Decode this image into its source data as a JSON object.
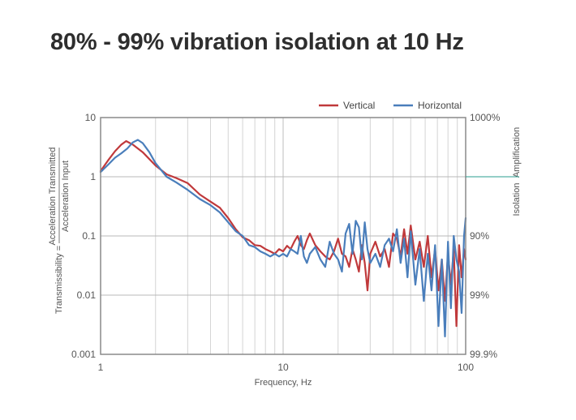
{
  "page": {
    "title": "80% - 99% vibration isolation at 10 Hz"
  },
  "chart_data": {
    "type": "line",
    "title": "80% - 99% vibration isolation at 10 Hz",
    "xlabel": "Frequency, Hz",
    "ylabel_left": "Transmissibility = Acceleration Transmitted / Acceleration Input",
    "ylabel_left_prefix": "Transmissibility =",
    "ylabel_left_numerator": "Acceleration Transmitted",
    "ylabel_left_denominator": "Acceleration Input",
    "ylabel_right_upper": "Amplification",
    "ylabel_right_lower": "Isolation",
    "x_scale": "log",
    "y_scale": "log",
    "xlim": [
      1,
      100
    ],
    "ylim": [
      0.001,
      10
    ],
    "x_ticks": [
      {
        "value": 1,
        "label": "1"
      },
      {
        "value": 10,
        "label": "10"
      },
      {
        "value": 100,
        "label": "100"
      }
    ],
    "y_ticks_left": [
      {
        "value": 10,
        "label": "10"
      },
      {
        "value": 1,
        "label": "1"
      },
      {
        "value": 0.1,
        "label": "0.1"
      },
      {
        "value": 0.01,
        "label": "0.01"
      },
      {
        "value": 0.001,
        "label": "0.001"
      }
    ],
    "y_ticks_right": [
      {
        "value": 10,
        "label": "1000%"
      },
      {
        "value": 0.1,
        "label": "90%"
      },
      {
        "value": 0.01,
        "label": "99%"
      },
      {
        "value": 0.001,
        "label": "99.9%"
      }
    ],
    "reference_line": {
      "value": 1,
      "color": "#2a9d8f"
    },
    "grid": true,
    "legend_position": "top-right",
    "series": [
      {
        "name": "Vertical",
        "color": "#c0393b",
        "x": [
          1.0,
          1.1,
          1.2,
          1.3,
          1.38,
          1.5,
          1.7,
          2.0,
          2.3,
          2.6,
          3.0,
          3.5,
          4.0,
          4.5,
          5.0,
          5.5,
          6.0,
          6.5,
          7.0,
          7.5,
          8.0,
          8.5,
          9.0,
          9.5,
          10.0,
          10.5,
          11.0,
          11.5,
          12.0,
          12.5,
          13.0,
          13.5,
          14.0,
          15.0,
          16.0,
          17.0,
          18.0,
          19.0,
          20.0,
          21.0,
          22.0,
          23.0,
          24.0,
          25.0,
          26.0,
          27.0,
          28.0,
          29.0,
          30.0,
          32.0,
          34.0,
          36.0,
          38.0,
          40.0,
          42.0,
          44.0,
          46.0,
          48.0,
          50.0,
          53.0,
          56.0,
          59.0,
          62.0,
          65.0,
          68.0,
          71.0,
          74.0,
          77.0,
          80.0,
          83.0,
          86.0,
          89.0,
          92.0,
          95.0,
          98.0,
          100.0
        ],
        "y": [
          1.25,
          1.9,
          2.7,
          3.5,
          4.0,
          3.5,
          2.6,
          1.55,
          1.1,
          0.95,
          0.78,
          0.5,
          0.38,
          0.3,
          0.2,
          0.13,
          0.095,
          0.085,
          0.07,
          0.068,
          0.06,
          0.055,
          0.05,
          0.06,
          0.055,
          0.068,
          0.06,
          0.08,
          0.1,
          0.07,
          0.06,
          0.085,
          0.11,
          0.07,
          0.055,
          0.045,
          0.04,
          0.055,
          0.09,
          0.05,
          0.045,
          0.03,
          0.06,
          0.04,
          0.025,
          0.07,
          0.035,
          0.012,
          0.05,
          0.08,
          0.045,
          0.06,
          0.03,
          0.11,
          0.09,
          0.045,
          0.13,
          0.05,
          0.15,
          0.04,
          0.08,
          0.03,
          0.1,
          0.02,
          0.06,
          0.012,
          0.04,
          0.008,
          0.05,
          0.015,
          0.06,
          0.003,
          0.07,
          0.02,
          0.06,
          0.04
        ]
      },
      {
        "name": "Horizontal",
        "color": "#4a7ebb",
        "x": [
          1.0,
          1.1,
          1.2,
          1.3,
          1.4,
          1.5,
          1.6,
          1.7,
          1.85,
          2.0,
          2.3,
          2.6,
          3.0,
          3.5,
          4.0,
          4.5,
          5.0,
          5.5,
          6.0,
          6.5,
          7.0,
          7.5,
          8.0,
          8.5,
          9.0,
          9.5,
          10.0,
          10.5,
          11.0,
          11.5,
          12.0,
          12.5,
          13.0,
          13.5,
          14.0,
          15.0,
          16.0,
          17.0,
          18.0,
          19.0,
          20.0,
          21.0,
          22.0,
          23.0,
          24.0,
          25.0,
          26.0,
          27.0,
          28.0,
          29.0,
          30.0,
          32.0,
          34.0,
          36.0,
          38.0,
          40.0,
          42.0,
          44.0,
          46.0,
          48.0,
          50.0,
          53.0,
          56.0,
          59.0,
          62.0,
          65.0,
          68.0,
          71.0,
          74.0,
          77.0,
          80.0,
          83.0,
          86.0,
          89.0,
          92.0,
          95.0,
          98.0,
          100.0
        ],
        "y": [
          1.2,
          1.6,
          2.1,
          2.5,
          3.0,
          3.8,
          4.2,
          3.7,
          2.6,
          1.7,
          1.0,
          0.8,
          0.6,
          0.42,
          0.33,
          0.25,
          0.17,
          0.12,
          0.1,
          0.07,
          0.065,
          0.055,
          0.05,
          0.045,
          0.05,
          0.045,
          0.05,
          0.045,
          0.06,
          0.055,
          0.05,
          0.1,
          0.045,
          0.035,
          0.05,
          0.065,
          0.04,
          0.03,
          0.08,
          0.05,
          0.04,
          0.025,
          0.11,
          0.16,
          0.05,
          0.18,
          0.14,
          0.04,
          0.17,
          0.06,
          0.035,
          0.05,
          0.03,
          0.07,
          0.09,
          0.055,
          0.13,
          0.035,
          0.09,
          0.02,
          0.12,
          0.015,
          0.06,
          0.008,
          0.05,
          0.012,
          0.07,
          0.003,
          0.04,
          0.002,
          0.08,
          0.006,
          0.1,
          0.04,
          0.025,
          0.005,
          0.1,
          0.2
        ]
      }
    ]
  }
}
